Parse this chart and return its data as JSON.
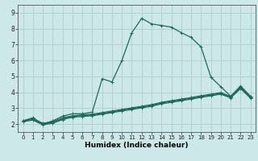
{
  "title": "",
  "xlabel": "Humidex (Indice chaleur)",
  "ylabel": "",
  "xlim": [
    -0.5,
    23.5
  ],
  "ylim": [
    1.5,
    9.5
  ],
  "xticks": [
    0,
    1,
    2,
    3,
    4,
    5,
    6,
    7,
    8,
    9,
    10,
    11,
    12,
    13,
    14,
    15,
    16,
    17,
    18,
    19,
    20,
    21,
    22,
    23
  ],
  "yticks": [
    2,
    3,
    4,
    5,
    6,
    7,
    8,
    9
  ],
  "background_color": "#cce8e8",
  "grid_color": "#b0cccc",
  "line_color": "#1a6b5a",
  "lines": [
    {
      "x": [
        0,
        1,
        2,
        3,
        4,
        5,
        6,
        7,
        8,
        9,
        10,
        11,
        12,
        13,
        14,
        15,
        16,
        17,
        18,
        19,
        20,
        21,
        22,
        23
      ],
      "y": [
        2.2,
        2.4,
        2.0,
        2.2,
        2.5,
        2.65,
        2.65,
        2.75,
        4.85,
        4.65,
        6.0,
        7.75,
        8.65,
        8.3,
        8.2,
        8.1,
        7.75,
        7.45,
        6.85,
        4.95,
        4.35,
        3.75,
        4.4,
        3.75
      ]
    },
    {
      "x": [
        0,
        1,
        2,
        3,
        4,
        5,
        6,
        7,
        8,
        9,
        10,
        11,
        12,
        13,
        14,
        15,
        16,
        17,
        18,
        19,
        20,
        21,
        22,
        23
      ],
      "y": [
        2.2,
        2.35,
        2.05,
        2.15,
        2.4,
        2.52,
        2.58,
        2.62,
        2.72,
        2.82,
        2.92,
        3.02,
        3.12,
        3.22,
        3.37,
        3.47,
        3.57,
        3.67,
        3.78,
        3.88,
        3.98,
        3.73,
        4.32,
        3.72
      ]
    },
    {
      "x": [
        0,
        1,
        2,
        3,
        4,
        5,
        6,
        7,
        8,
        9,
        10,
        11,
        12,
        13,
        14,
        15,
        16,
        17,
        18,
        19,
        20,
        21,
        22,
        23
      ],
      "y": [
        2.18,
        2.3,
        2.0,
        2.1,
        2.33,
        2.48,
        2.53,
        2.57,
        2.67,
        2.77,
        2.87,
        2.97,
        3.07,
        3.17,
        3.32,
        3.42,
        3.52,
        3.62,
        3.73,
        3.83,
        3.93,
        3.7,
        4.28,
        3.68
      ]
    },
    {
      "x": [
        0,
        1,
        2,
        3,
        4,
        5,
        6,
        7,
        8,
        9,
        10,
        11,
        12,
        13,
        14,
        15,
        16,
        17,
        18,
        19,
        20,
        21,
        22,
        23
      ],
      "y": [
        2.15,
        2.25,
        1.95,
        2.05,
        2.28,
        2.43,
        2.48,
        2.52,
        2.62,
        2.72,
        2.82,
        2.92,
        3.02,
        3.12,
        3.27,
        3.37,
        3.47,
        3.57,
        3.68,
        3.78,
        3.88,
        3.65,
        4.23,
        3.63
      ]
    }
  ],
  "marker": "+",
  "markersize": 3,
  "linewidth": 0.9,
  "tick_labelsize": 5.5,
  "xlabel_fontsize": 6.5
}
